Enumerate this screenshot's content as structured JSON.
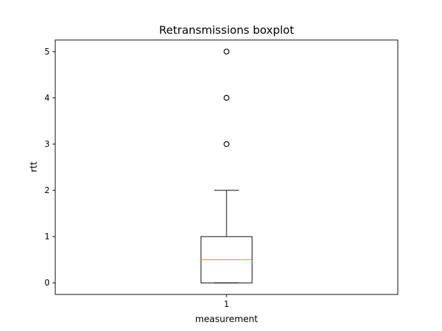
{
  "chart_data": {
    "type": "boxplot",
    "title": "Retransmissions boxplot",
    "xlabel": "measurement",
    "ylabel": "rtt",
    "categories": [
      "1"
    ],
    "yticks": [
      0,
      1,
      2,
      3,
      4,
      5
    ],
    "ylim": [
      -0.25,
      5.25
    ],
    "xlim": [
      0.5,
      1.5
    ],
    "grid": false,
    "boxes": [
      {
        "name": "1",
        "position": 1,
        "whisker_low": 0,
        "q1": 0,
        "median": 0.5,
        "q3": 1,
        "whisker_high": 2,
        "outliers": [
          3,
          4,
          5
        ]
      }
    ],
    "colors": {
      "box": "#000000",
      "median": "#ff7f0e",
      "flier": "#000000"
    }
  }
}
